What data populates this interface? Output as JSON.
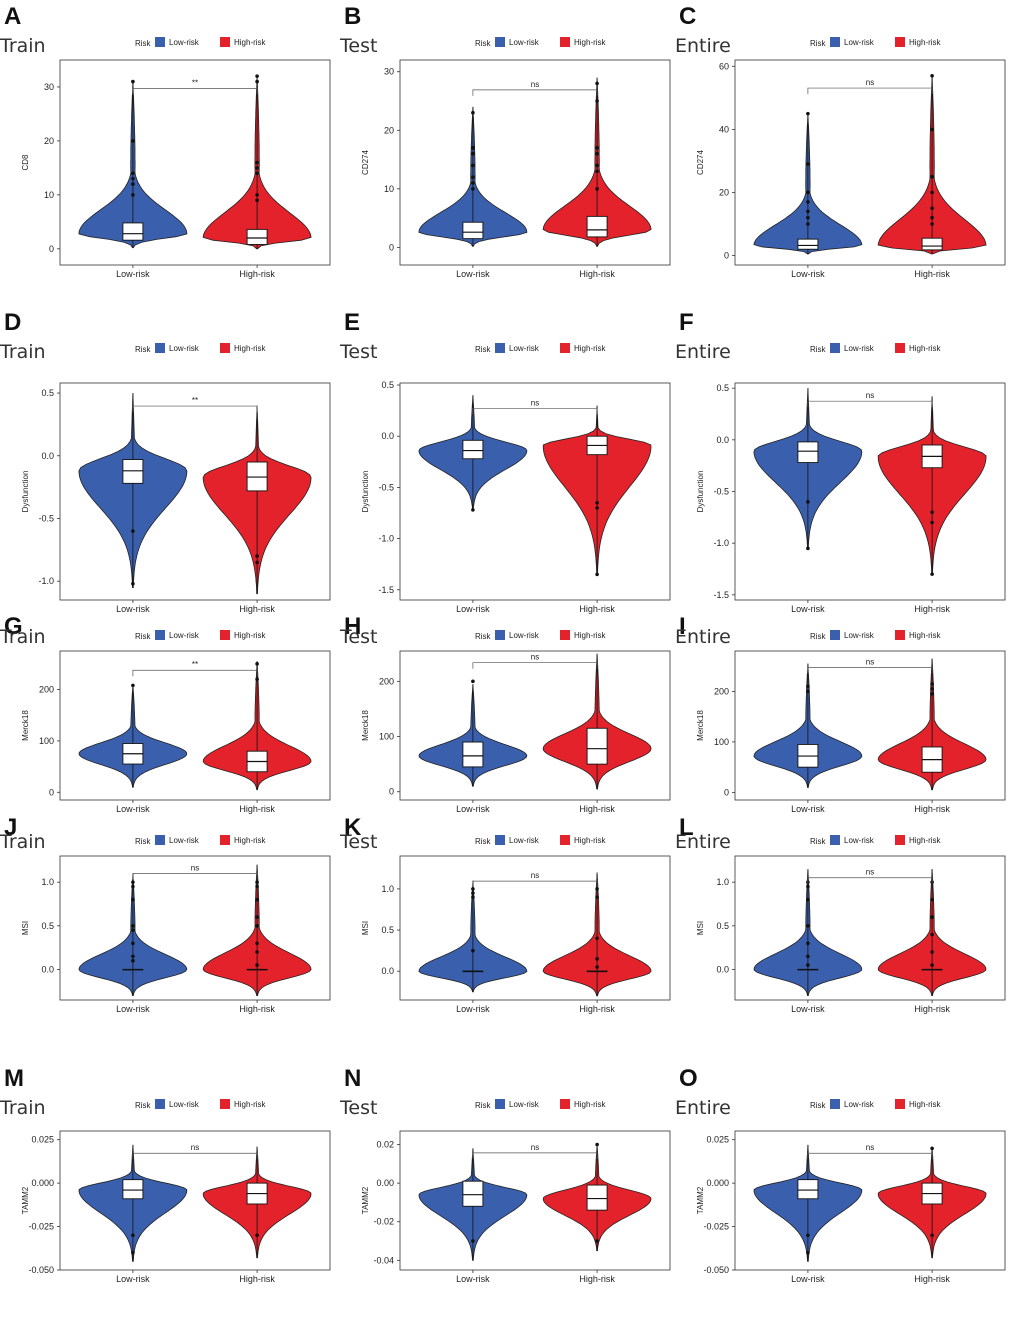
{
  "chart_data": [
    {
      "type": "violin",
      "panel_letter": "A",
      "title": "Train",
      "ylabel": "CD8",
      "ylim": [
        -3,
        35
      ],
      "yticks": [
        0,
        10,
        20,
        30
      ],
      "categories": [
        "Low-risk",
        "High-risk"
      ],
      "legend": {
        "title": "Risk",
        "entries": [
          "Low-risk",
          "High-risk"
        ]
      },
      "significance": "**",
      "series": [
        {
          "name": "Low-risk",
          "color": "#3a5fad",
          "box": {
            "q1": 1.6,
            "median": 2.8,
            "q3": 4.8
          },
          "range": [
            0.2,
            31
          ],
          "outliers": [
            10,
            12,
            13,
            14,
            20,
            31
          ]
        },
        {
          "name": "High-risk",
          "color": "#e3222b",
          "box": {
            "q1": 0.8,
            "median": 2.0,
            "q3": 3.6
          },
          "range": [
            0,
            32
          ],
          "outliers": [
            9,
            10,
            14,
            15,
            16,
            31,
            32
          ]
        }
      ]
    },
    {
      "type": "violin",
      "panel_letter": "B",
      "title": "Test",
      "ylabel": "CD274",
      "ylim": [
        -3,
        32
      ],
      "yticks": [
        0,
        10,
        20,
        30
      ],
      "categories": [
        "Low-risk",
        "High-risk"
      ],
      "legend": {
        "title": "Risk",
        "entries": [
          "Low-risk",
          "High-risk"
        ]
      },
      "significance": "ns",
      "series": [
        {
          "name": "Low-risk",
          "color": "#3a5fad",
          "box": {
            "q1": 1.5,
            "median": 2.6,
            "q3": 4.3
          },
          "range": [
            0.2,
            24
          ],
          "outliers": [
            10,
            11,
            12,
            14,
            16,
            17,
            23
          ]
        },
        {
          "name": "High-risk",
          "color": "#e3222b",
          "box": {
            "q1": 1.8,
            "median": 3.0,
            "q3": 5.3
          },
          "range": [
            0.2,
            29
          ],
          "outliers": [
            10,
            13,
            14,
            16,
            17,
            25,
            28
          ]
        }
      ]
    },
    {
      "type": "violin",
      "panel_letter": "C",
      "title": "Entire",
      "ylabel": "CD274",
      "ylim": [
        -3,
        62
      ],
      "yticks": [
        0,
        20,
        40,
        60
      ],
      "categories": [
        "Low-risk",
        "High-risk"
      ],
      "legend": {
        "title": "Risk",
        "entries": [
          "Low-risk",
          "High-risk"
        ]
      },
      "significance": "ns",
      "series": [
        {
          "name": "Low-risk",
          "color": "#3a5fad",
          "box": {
            "q1": 2,
            "median": 3.2,
            "q3": 5.2
          },
          "range": [
            0.5,
            45
          ],
          "outliers": [
            10,
            12,
            14,
            17,
            20,
            29,
            45
          ]
        },
        {
          "name": "High-risk",
          "color": "#e3222b",
          "box": {
            "q1": 1.8,
            "median": 3.0,
            "q3": 5.5
          },
          "range": [
            0.5,
            57
          ],
          "outliers": [
            10,
            12,
            15,
            20,
            25,
            40,
            57
          ]
        }
      ]
    },
    {
      "type": "violin",
      "panel_letter": "D",
      "title": "Train",
      "ylabel": "Dysfunction",
      "ylim": [
        -1.15,
        0.58
      ],
      "yticks": [
        -1.0,
        -0.5,
        0.0,
        0.5
      ],
      "categories": [
        "Low-risk",
        "High-risk"
      ],
      "legend": {
        "title": "Risk",
        "entries": [
          "Low-risk",
          "High-risk"
        ]
      },
      "significance": "**",
      "series": [
        {
          "name": "Low-risk",
          "color": "#3a5fad",
          "box": {
            "q1": -0.22,
            "median": -0.12,
            "q3": -0.03
          },
          "range": [
            -1.05,
            0.5
          ],
          "outliers": [
            -1.02,
            -0.6
          ]
        },
        {
          "name": "High-risk",
          "color": "#e3222b",
          "box": {
            "q1": -0.28,
            "median": -0.17,
            "q3": -0.05
          },
          "range": [
            -1.1,
            0.4
          ],
          "outliers": [
            -0.85,
            -0.8
          ]
        }
      ]
    },
    {
      "type": "violin",
      "panel_letter": "E",
      "title": "Test",
      "ylabel": "Dysfunction",
      "ylim": [
        -1.6,
        0.52
      ],
      "yticks": [
        -1.5,
        -1.0,
        -0.5,
        0.0,
        0.5
      ],
      "categories": [
        "Low-risk",
        "High-risk"
      ],
      "legend": {
        "title": "Risk",
        "entries": [
          "Low-risk",
          "High-risk"
        ]
      },
      "significance": "ns",
      "series": [
        {
          "name": "Low-risk",
          "color": "#3a5fad",
          "box": {
            "q1": -0.22,
            "median": -0.14,
            "q3": -0.04
          },
          "range": [
            -0.72,
            0.4
          ],
          "outliers": [
            -0.72
          ]
        },
        {
          "name": "High-risk",
          "color": "#e3222b",
          "box": {
            "q1": -0.18,
            "median": -0.09,
            "q3": 0.0
          },
          "range": [
            -1.35,
            0.3
          ],
          "outliers": [
            -1.35,
            -0.7,
            -0.65
          ]
        }
      ]
    },
    {
      "type": "violin",
      "panel_letter": "F",
      "title": "Entire",
      "ylabel": "Dysfunction",
      "ylim": [
        -1.55,
        0.55
      ],
      "yticks": [
        -1.5,
        -1.0,
        -0.5,
        0.0,
        0.5
      ],
      "categories": [
        "Low-risk",
        "High-risk"
      ],
      "legend": {
        "title": "Risk",
        "entries": [
          "Low-risk",
          "High-risk"
        ]
      },
      "significance": "ns",
      "series": [
        {
          "name": "Low-risk",
          "color": "#3a5fad",
          "box": {
            "q1": -0.22,
            "median": -0.11,
            "q3": -0.02
          },
          "range": [
            -1.05,
            0.5
          ],
          "outliers": [
            -1.05,
            -0.6
          ]
        },
        {
          "name": "High-risk",
          "color": "#e3222b",
          "box": {
            "q1": -0.27,
            "median": -0.16,
            "q3": -0.05
          },
          "range": [
            -1.3,
            0.42
          ],
          "outliers": [
            -1.3,
            -0.8,
            -0.7
          ]
        }
      ]
    },
    {
      "type": "violin",
      "panel_letter": "G",
      "title": "Train",
      "ylabel": "Merck18",
      "ylim": [
        -15,
        275
      ],
      "yticks": [
        0,
        100,
        200
      ],
      "categories": [
        "Low-risk",
        "High-risk"
      ],
      "legend": {
        "title": "Risk",
        "entries": [
          "Low-risk",
          "High-risk"
        ]
      },
      "significance": "**",
      "series": [
        {
          "name": "Low-risk",
          "color": "#3a5fad",
          "box": {
            "q1": 55,
            "median": 75,
            "q3": 95
          },
          "range": [
            10,
            210
          ],
          "outliers": [
            208
          ]
        },
        {
          "name": "High-risk",
          "color": "#e3222b",
          "box": {
            "q1": 40,
            "median": 60,
            "q3": 80
          },
          "range": [
            5,
            255
          ],
          "outliers": [
            250,
            220
          ]
        }
      ]
    },
    {
      "type": "violin",
      "panel_letter": "H",
      "title": "Test",
      "ylabel": "Merck18",
      "ylim": [
        -15,
        255
      ],
      "yticks": [
        0,
        100,
        200
      ],
      "categories": [
        "Low-risk",
        "High-risk"
      ],
      "legend": {
        "title": "Risk",
        "entries": [
          "Low-risk",
          "High-risk"
        ]
      },
      "significance": "ns",
      "series": [
        {
          "name": "Low-risk",
          "color": "#3a5fad",
          "box": {
            "q1": 45,
            "median": 65,
            "q3": 90
          },
          "range": [
            10,
            195
          ],
          "outliers": [
            200
          ]
        },
        {
          "name": "High-risk",
          "color": "#e3222b",
          "box": {
            "q1": 50,
            "median": 78,
            "q3": 115
          },
          "range": [
            5,
            250
          ],
          "outliers": []
        }
      ]
    },
    {
      "type": "violin",
      "panel_letter": "I",
      "title": "Entire",
      "ylabel": "Merck18",
      "ylim": [
        -15,
        280
      ],
      "yticks": [
        0,
        100,
        200
      ],
      "categories": [
        "Low-risk",
        "High-risk"
      ],
      "legend": {
        "title": "Risk",
        "entries": [
          "Low-risk",
          "High-risk"
        ]
      },
      "significance": "ns",
      "series": [
        {
          "name": "Low-risk",
          "color": "#3a5fad",
          "box": {
            "q1": 50,
            "median": 72,
            "q3": 95
          },
          "range": [
            10,
            255
          ],
          "outliers": [
            210,
            200
          ]
        },
        {
          "name": "High-risk",
          "color": "#e3222b",
          "box": {
            "q1": 40,
            "median": 65,
            "q3": 90
          },
          "range": [
            5,
            265
          ],
          "outliers": [
            215,
            205,
            195
          ]
        }
      ]
    },
    {
      "type": "violin",
      "panel_letter": "J",
      "title": "Train",
      "ylabel": "MSI",
      "ylim": [
        -0.35,
        1.3
      ],
      "yticks": [
        0.0,
        0.5,
        1.0
      ],
      "categories": [
        "Low-risk",
        "High-risk"
      ],
      "legend": {
        "title": "Risk",
        "entries": [
          "Low-risk",
          "High-risk"
        ]
      },
      "significance": "ns",
      "series": [
        {
          "name": "Low-risk",
          "color": "#3a5fad",
          "box": {
            "q1": 0.0,
            "median": 0.0,
            "q3": 0.0
          },
          "range": [
            -0.3,
            1.1
          ],
          "outliers": [
            0.1,
            0.15,
            0.3,
            0.45,
            0.5,
            0.8,
            0.95,
            1.0
          ]
        },
        {
          "name": "High-risk",
          "color": "#e3222b",
          "box": {
            "q1": 0.0,
            "median": 0.0,
            "q3": 0.0
          },
          "range": [
            -0.3,
            1.2
          ],
          "outliers": [
            0.05,
            0.2,
            0.3,
            0.5,
            0.6,
            0.8,
            0.95,
            1.0
          ]
        }
      ]
    },
    {
      "type": "violin",
      "panel_letter": "K",
      "title": "Test",
      "ylabel": "MSI",
      "ylim": [
        -0.35,
        1.4
      ],
      "yticks": [
        0.0,
        0.5,
        1.0
      ],
      "categories": [
        "Low-risk",
        "High-risk"
      ],
      "legend": {
        "title": "Risk",
        "entries": [
          "Low-risk",
          "High-risk"
        ]
      },
      "significance": "ns",
      "series": [
        {
          "name": "Low-risk",
          "color": "#3a5fad",
          "box": {
            "q1": 0.0,
            "median": 0.0,
            "q3": 0.0
          },
          "range": [
            -0.25,
            1.1
          ],
          "outliers": [
            0.25,
            0.9,
            0.95,
            1.0
          ]
        },
        {
          "name": "High-risk",
          "color": "#e3222b",
          "box": {
            "q1": 0.0,
            "median": 0.0,
            "q3": 0.0
          },
          "range": [
            -0.3,
            1.2
          ],
          "outliers": [
            0.05,
            0.15,
            0.4,
            0.9,
            1.0
          ]
        }
      ]
    },
    {
      "type": "violin",
      "panel_letter": "L",
      "title": "Entire",
      "ylabel": "MSI",
      "ylim": [
        -0.35,
        1.3
      ],
      "yticks": [
        0.0,
        0.5,
        1.0
      ],
      "categories": [
        "Low-risk",
        "High-risk"
      ],
      "legend": {
        "title": "Risk",
        "entries": [
          "Low-risk",
          "High-risk"
        ]
      },
      "significance": "ns",
      "series": [
        {
          "name": "Low-risk",
          "color": "#3a5fad",
          "box": {
            "q1": 0.0,
            "median": 0.0,
            "q3": 0.0
          },
          "range": [
            -0.3,
            1.15
          ],
          "outliers": [
            0.05,
            0.15,
            0.3,
            0.5,
            0.8,
            0.95,
            1.0
          ]
        },
        {
          "name": "High-risk",
          "color": "#e3222b",
          "box": {
            "q1": 0.0,
            "median": 0.0,
            "q3": 0.0
          },
          "range": [
            -0.3,
            1.15
          ],
          "outliers": [
            0.05,
            0.2,
            0.4,
            0.6,
            0.8,
            1.0
          ]
        }
      ]
    },
    {
      "type": "violin",
      "panel_letter": "M",
      "title": "Train",
      "ylabel": "TAMM2",
      "ylim": [
        -0.05,
        0.03
      ],
      "yticks": [
        -0.05,
        -0.025,
        0.0,
        0.025
      ],
      "ytick_labels": [
        "-0.050",
        "-0.025",
        "0.000",
        "0.025"
      ],
      "categories": [
        "Low-risk",
        "High-risk"
      ],
      "legend": {
        "title": "Risk",
        "entries": [
          "Low-risk",
          "High-risk"
        ]
      },
      "significance": "ns",
      "series": [
        {
          "name": "Low-risk",
          "color": "#3a5fad",
          "box": {
            "q1": -0.009,
            "median": -0.004,
            "q3": 0.002
          },
          "range": [
            -0.045,
            0.022
          ],
          "outliers": [
            -0.03,
            -0.04
          ]
        },
        {
          "name": "High-risk",
          "color": "#e3222b",
          "box": {
            "q1": -0.012,
            "median": -0.006,
            "q3": 0.0
          },
          "range": [
            -0.043,
            0.021
          ],
          "outliers": [
            -0.03
          ]
        }
      ]
    },
    {
      "type": "violin",
      "panel_letter": "N",
      "title": "Test",
      "ylabel": "TAMM2",
      "ylim": [
        -0.045,
        0.027
      ],
      "yticks": [
        -0.04,
        -0.02,
        0.0,
        0.02
      ],
      "ytick_labels": [
        "-0.04",
        "-0.02",
        "0.00",
        "0.02"
      ],
      "categories": [
        "Low-risk",
        "High-risk"
      ],
      "legend": {
        "title": "Risk",
        "entries": [
          "Low-risk",
          "High-risk"
        ]
      },
      "significance": "ns",
      "series": [
        {
          "name": "Low-risk",
          "color": "#3a5fad",
          "box": {
            "q1": -0.012,
            "median": -0.006,
            "q3": 0.001
          },
          "range": [
            -0.04,
            0.018
          ],
          "outliers": [
            -0.03
          ]
        },
        {
          "name": "High-risk",
          "color": "#e3222b",
          "box": {
            "q1": -0.014,
            "median": -0.008,
            "q3": -0.001
          },
          "range": [
            -0.035,
            0.02
          ],
          "outliers": [
            -0.03,
            0.02
          ]
        }
      ]
    },
    {
      "type": "violin",
      "panel_letter": "O",
      "title": "Entire",
      "ylabel": "TAMM2",
      "ylim": [
        -0.05,
        0.03
      ],
      "yticks": [
        -0.05,
        -0.025,
        0.0,
        0.025
      ],
      "ytick_labels": [
        "-0.050",
        "-0.025",
        "0.000",
        "0.025"
      ],
      "categories": [
        "Low-risk",
        "High-risk"
      ],
      "legend": {
        "title": "Risk",
        "entries": [
          "Low-risk",
          "High-risk"
        ]
      },
      "significance": "ns",
      "series": [
        {
          "name": "Low-risk",
          "color": "#3a5fad",
          "box": {
            "q1": -0.009,
            "median": -0.004,
            "q3": 0.002
          },
          "range": [
            -0.045,
            0.022
          ],
          "outliers": [
            -0.03,
            -0.04
          ]
        },
        {
          "name": "High-risk",
          "color": "#e3222b",
          "box": {
            "q1": -0.012,
            "median": -0.006,
            "q3": 0.0
          },
          "range": [
            -0.043,
            0.021
          ],
          "outliers": [
            -0.03,
            0.02
          ]
        }
      ]
    }
  ]
}
